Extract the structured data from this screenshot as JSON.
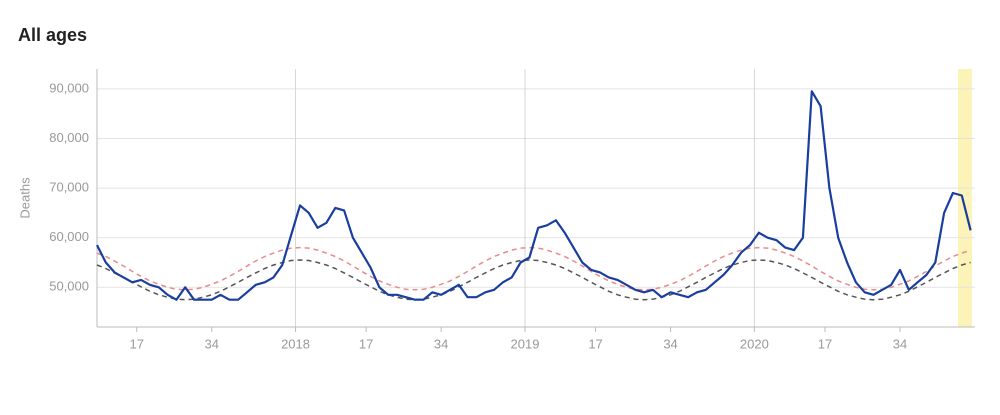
{
  "chart_data": {
    "type": "line",
    "title": "All ages",
    "y_label": "Deaths",
    "x": [
      8,
      10,
      12,
      14,
      16,
      18,
      20,
      22,
      24,
      26,
      28,
      30,
      32,
      34,
      36,
      38,
      40,
      42,
      44,
      46,
      48,
      50,
      52,
      54,
      56,
      58,
      60,
      62,
      64,
      66,
      68,
      70,
      72,
      74,
      76,
      78,
      80,
      82,
      84,
      86,
      88,
      90,
      92,
      94,
      96,
      98,
      100,
      102,
      104,
      106,
      108,
      110,
      112,
      114,
      116,
      118,
      120,
      122,
      124,
      126,
      128,
      130,
      132,
      134,
      136,
      138,
      140,
      142,
      144,
      146,
      148,
      150,
      152,
      154,
      156,
      158,
      160,
      162,
      164,
      166,
      168,
      170,
      172,
      174,
      176,
      178,
      180,
      182,
      184,
      186,
      188,
      190,
      192,
      194,
      196,
      198,
      200,
      202,
      204,
      206
    ],
    "series": [
      {
        "color": "#e88a8a",
        "dash": true,
        "values": [
          56900,
          56200,
          55300,
          54300,
          53200,
          52200,
          51300,
          50600,
          50000,
          49600,
          49500,
          49600,
          50000,
          50600,
          51300,
          52200,
          53200,
          54300,
          55300,
          56200,
          56900,
          57500,
          57900,
          58000,
          57900,
          57500,
          56900,
          56200,
          55300,
          54300,
          53200,
          52200,
          51300,
          50600,
          50000,
          49600,
          49500,
          49600,
          50000,
          50600,
          51300,
          52200,
          53200,
          54300,
          55300,
          56200,
          56900,
          57500,
          57900,
          58000,
          57900,
          57500,
          56900,
          56200,
          55300,
          54300,
          53200,
          52200,
          51300,
          50600,
          50000,
          49600,
          49500,
          49600,
          50000,
          50600,
          51300,
          52200,
          53200,
          54300,
          55300,
          56200,
          56900,
          57500,
          57900,
          58000,
          57900,
          57500,
          56900,
          56200,
          55300,
          54300,
          53200,
          52200,
          51300,
          50600,
          50000,
          49600,
          49500,
          49600,
          50000,
          50600,
          51300,
          52200,
          53200,
          54300,
          55300,
          56200,
          56900,
          57500
        ]
      },
      {
        "color": "#555555",
        "dash": true,
        "values": [
          54500,
          53800,
          52900,
          52000,
          51000,
          50100,
          49200,
          48500,
          48000,
          47600,
          47500,
          47600,
          48000,
          48500,
          49200,
          50100,
          51000,
          52000,
          52900,
          53800,
          54500,
          55000,
          55400,
          55500,
          55400,
          55000,
          54500,
          53800,
          52900,
          52000,
          51000,
          50100,
          49200,
          48500,
          48000,
          47600,
          47500,
          47600,
          48000,
          48500,
          49200,
          50100,
          51000,
          52000,
          52900,
          53800,
          54500,
          55000,
          55400,
          55500,
          55400,
          55000,
          54500,
          53800,
          52900,
          52000,
          51000,
          50100,
          49200,
          48500,
          48000,
          47600,
          47500,
          47600,
          48000,
          48500,
          49200,
          50100,
          51000,
          52000,
          52900,
          53800,
          54500,
          55000,
          55400,
          55500,
          55400,
          55000,
          54500,
          53800,
          52900,
          52000,
          51000,
          50100,
          49200,
          48500,
          48000,
          47600,
          47500,
          47600,
          48000,
          48500,
          49200,
          50100,
          51000,
          52000,
          52900,
          53800,
          54500,
          55000
        ]
      },
      {
        "color": "#1a3ea0",
        "dash": false,
        "values": [
          58500,
          55000,
          53000,
          52000,
          51000,
          51500,
          50500,
          50000,
          48500,
          47500,
          50000,
          47500,
          47500,
          47500,
          48500,
          47500,
          47500,
          49000,
          50500,
          51000,
          52000,
          54500,
          60500,
          66500,
          65000,
          62000,
          63000,
          66000,
          65500,
          60000,
          57000,
          54000,
          50000,
          48500,
          48500,
          48000,
          47500,
          47500,
          49000,
          48500,
          49500,
          50500,
          48000,
          48000,
          49000,
          49500,
          51000,
          52000,
          55000,
          56000,
          62000,
          62500,
          63500,
          61000,
          58000,
          55000,
          53500,
          53000,
          52000,
          51500,
          50500,
          49500,
          49000,
          49500,
          48000,
          49000,
          48500,
          48000,
          49000,
          49500,
          51000,
          52500,
          54500,
          57000,
          58500,
          61000,
          60000,
          59500,
          58000,
          57500,
          60000,
          89500,
          86500,
          70000,
          60000,
          55000,
          51000,
          49000,
          48500,
          49500,
          50500,
          53500,
          49500,
          51000,
          52500,
          55000,
          65000,
          69000,
          68500,
          61500
        ]
      }
    ],
    "xlim": [
      8,
      207
    ],
    "xticks": [
      {
        "value": 17,
        "label": "17"
      },
      {
        "value": 34,
        "label": "34"
      },
      {
        "value": 53,
        "label": "2018"
      },
      {
        "value": 69,
        "label": "17"
      },
      {
        "value": 86,
        "label": "34"
      },
      {
        "value": 105,
        "label": "2019"
      },
      {
        "value": 121,
        "label": "17"
      },
      {
        "value": 138,
        "label": "34"
      },
      {
        "value": 157,
        "label": "2020"
      },
      {
        "value": 173,
        "label": "17"
      },
      {
        "value": 190,
        "label": "34"
      }
    ],
    "ylim": [
      42000,
      94000
    ],
    "yticks": [
      {
        "value": 50000,
        "label": "50,000"
      },
      {
        "value": 60000,
        "label": "60,000"
      },
      {
        "value": 70000,
        "label": "70,000"
      },
      {
        "value": 80000,
        "label": "80,000"
      },
      {
        "value": 90000,
        "label": "90,000"
      }
    ],
    "grid": true
  }
}
